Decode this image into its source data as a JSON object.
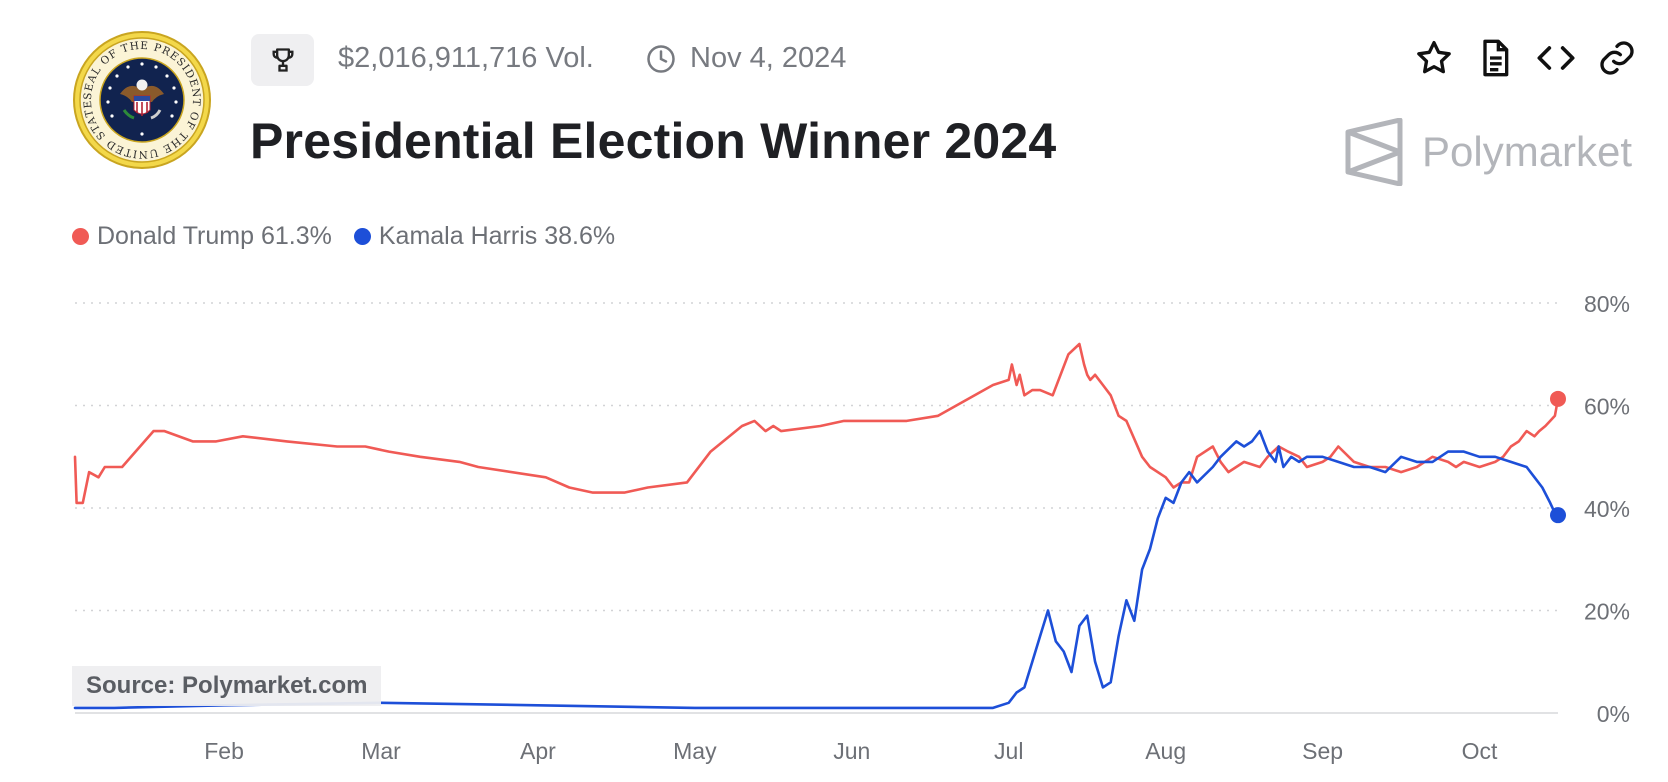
{
  "header": {
    "volume": "$2,016,911,716 Vol.",
    "end_date": "Nov 4, 2024",
    "title": "Presidential Election Winner 2024",
    "icons": [
      "presidential-seal-icon",
      "trophy-icon",
      "clock-icon",
      "star-icon",
      "document-icon",
      "code-icon",
      "link-icon"
    ]
  },
  "seal": {
    "ring_text": "SEAL OF THE PRESIDENT OF THE UNITED STATES"
  },
  "brand": {
    "name": "Polymarket"
  },
  "legend": [
    {
      "name": "Donald Trump",
      "value": "61.3%",
      "color": "#f05a55"
    },
    {
      "name": "Kamala Harris",
      "value": "38.6%",
      "color": "#1d4fd8"
    }
  ],
  "source": "Source: Polymarket.com",
  "chart_data": {
    "type": "line",
    "title": "Presidential Election Winner 2024",
    "xlabel": "",
    "ylabel": "",
    "x_unit": "months since Jan 1, 2024",
    "xlim": [
      0.05,
      9.5
    ],
    "ylim": [
      0,
      80
    ],
    "yticks": [
      0,
      20,
      40,
      60,
      80
    ],
    "ytick_labels": [
      "0%",
      "20%",
      "40%",
      "60%",
      "80%"
    ],
    "xticks": [
      1,
      2,
      3,
      4,
      5,
      6,
      7,
      8,
      9
    ],
    "xtick_labels": [
      "Feb",
      "Mar",
      "Apr",
      "May",
      "Jun",
      "Jul",
      "Aug",
      "Sep",
      "Oct"
    ],
    "grid": true,
    "legend_position": "top-left",
    "series": [
      {
        "name": "Donald Trump",
        "color": "#f05a55",
        "x": [
          0.05,
          0.06,
          0.1,
          0.14,
          0.2,
          0.24,
          0.35,
          0.55,
          0.62,
          0.8,
          0.95,
          1.12,
          1.4,
          1.72,
          1.9,
          2.05,
          2.25,
          2.5,
          2.62,
          3.05,
          3.2,
          3.35,
          3.55,
          3.7,
          3.95,
          4.1,
          4.3,
          4.38,
          4.45,
          4.5,
          4.55,
          4.8,
          4.95,
          5.05,
          5.15,
          5.35,
          5.55,
          5.9,
          6.0,
          6.02,
          6.05,
          6.07,
          6.1,
          6.15,
          6.2,
          6.28,
          6.38,
          6.45,
          6.48,
          6.5,
          6.52,
          6.55,
          6.6,
          6.65,
          6.7,
          6.75,
          6.85,
          6.9,
          7.0,
          7.05,
          7.1,
          7.15,
          7.2,
          7.3,
          7.35,
          7.4,
          7.5,
          7.6,
          7.65,
          7.72,
          7.78,
          7.85,
          7.9,
          8.0,
          8.05,
          8.1,
          8.2,
          8.3,
          8.4,
          8.5,
          8.6,
          8.7,
          8.8,
          8.85,
          8.9,
          9.0,
          9.1,
          9.15,
          9.2,
          9.25,
          9.3,
          9.35,
          9.38,
          9.42,
          9.45,
          9.48,
          9.5
        ],
        "y": [
          50,
          41,
          41,
          47,
          46,
          48,
          48,
          55,
          55,
          53,
          53,
          54,
          53,
          52,
          52,
          51,
          50,
          49,
          48,
          46,
          44,
          43,
          43,
          44,
          45,
          51,
          56,
          57,
          55,
          56,
          55,
          56,
          57,
          57,
          57,
          57,
          58,
          64,
          65,
          68,
          64,
          66,
          62,
          63,
          63,
          62,
          70,
          72,
          68,
          66,
          65,
          66,
          64,
          62,
          58,
          57,
          50,
          48,
          46,
          44,
          45,
          45,
          50,
          52,
          49,
          47,
          49,
          48,
          50,
          52,
          51,
          50,
          48,
          49,
          50,
          52,
          49,
          48,
          48,
          47,
          48,
          50,
          49,
          48,
          49,
          48,
          49,
          50,
          52,
          53,
          55,
          54,
          55,
          56,
          57,
          58,
          61.3
        ]
      },
      {
        "name": "Kamala Harris",
        "color": "#1d4fd8",
        "x": [
          0.05,
          0.3,
          1.0,
          2.0,
          3.0,
          4.0,
          5.0,
          5.5,
          5.9,
          6.0,
          6.05,
          6.1,
          6.15,
          6.2,
          6.25,
          6.3,
          6.35,
          6.4,
          6.45,
          6.5,
          6.55,
          6.6,
          6.65,
          6.7,
          6.75,
          6.8,
          6.85,
          6.9,
          6.95,
          7.0,
          7.05,
          7.1,
          7.15,
          7.2,
          7.3,
          7.35,
          7.45,
          7.5,
          7.55,
          7.6,
          7.65,
          7.7,
          7.72,
          7.75,
          7.8,
          7.85,
          7.9,
          8.0,
          8.1,
          8.2,
          8.3,
          8.4,
          8.5,
          8.6,
          8.7,
          8.8,
          8.9,
          9.0,
          9.1,
          9.2,
          9.3,
          9.35,
          9.4,
          9.45,
          9.48,
          9.5
        ],
        "y": [
          1,
          1,
          1.5,
          2,
          1.5,
          1,
          1,
          1,
          1,
          2,
          4,
          5,
          10,
          15,
          20,
          14,
          12,
          8,
          17,
          19,
          10,
          5,
          6,
          15,
          22,
          18,
          28,
          32,
          38,
          42,
          41,
          45,
          47,
          45,
          48,
          50,
          53,
          52,
          53,
          55,
          51,
          49,
          52,
          48,
          50,
          49,
          50,
          50,
          49,
          48,
          48,
          47,
          50,
          49,
          49,
          51,
          51,
          50,
          50,
          49,
          48,
          46,
          44,
          41,
          39,
          38.6
        ]
      }
    ],
    "end_markers": [
      "61.3%",
      "38.6%"
    ]
  }
}
